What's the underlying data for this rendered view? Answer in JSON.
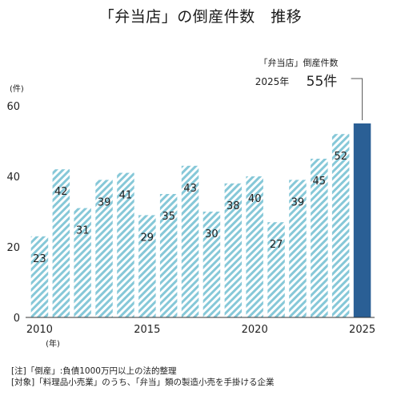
{
  "title": "「弁当店」の倒産件数　推移",
  "chart_data": {
    "type": "bar",
    "title": "「弁当店」の倒産件数　推移",
    "ylabel": "(件)",
    "xlabel": "(年)",
    "ylim": [
      0,
      60
    ],
    "yticks": [
      0,
      20,
      40,
      60
    ],
    "xticks": [
      "2010",
      "2015",
      "2020",
      "2025"
    ],
    "categories": [
      "2010",
      "2011",
      "2012",
      "2013",
      "2014",
      "2015",
      "2016",
      "2017",
      "2018",
      "2019",
      "2020",
      "2021",
      "2022",
      "2023",
      "2024",
      "2025"
    ],
    "values": [
      23,
      42,
      31,
      39,
      41,
      29,
      35,
      43,
      30,
      38,
      40,
      27,
      39,
      45,
      52,
      55
    ],
    "grid": false,
    "colors": {
      "hatch": "#86c8d8",
      "highlight": "#2a5f95"
    },
    "annotation": {
      "line1": "「弁当店」倒産件数",
      "year": "2025年",
      "value": "55件"
    }
  },
  "notes": [
    "[注]「倒産」:負債1000万円以上の法的整理",
    "[対象]「料理品小売業」のうち、「弁当」類の製造小売を手掛ける企業"
  ]
}
